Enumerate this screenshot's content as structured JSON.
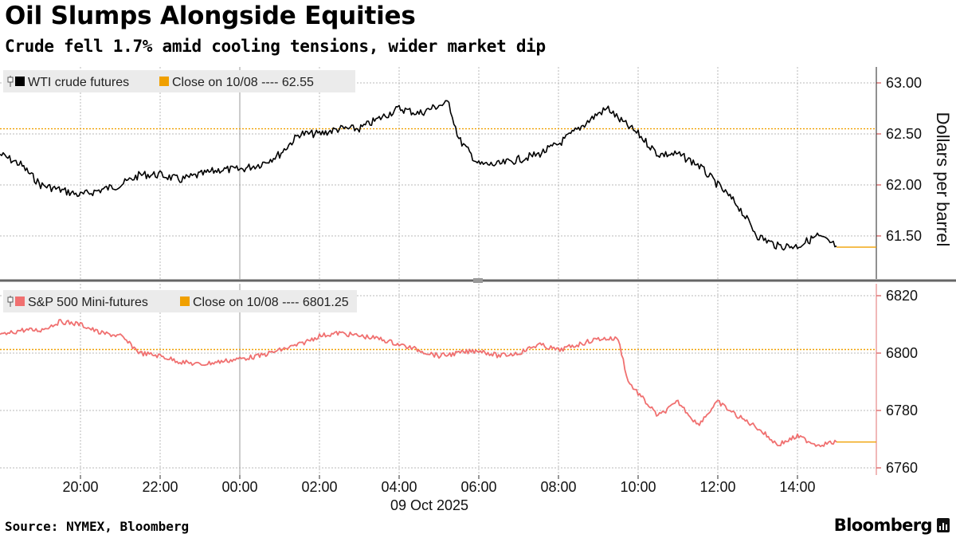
{
  "title": "Oil Slumps Alongside Equities",
  "subtitle": "Crude fell 1.7% amid cooling tensions, wider market dip",
  "source": "Source: NYMEX, Bloomberg",
  "brand": "Bloomberg",
  "x_axis": {
    "ticks": [
      "20:00",
      "22:00",
      "00:00",
      "02:00",
      "04:00",
      "06:00",
      "08:00",
      "10:00",
      "12:00",
      "14:00"
    ],
    "date_label": "09 Oct 2025"
  },
  "colors": {
    "wti": "#000000",
    "spx": "#f07070",
    "close": "#f0a000",
    "grid": "#b8b8b8"
  },
  "chart_data": [
    {
      "type": "line",
      "series": [
        {
          "name": "WTI crude futures",
          "x": [
            "18:00",
            "18:30",
            "19:00",
            "19:30",
            "20:00",
            "20:30",
            "21:00",
            "21:30",
            "22:00",
            "22:30",
            "23:00",
            "23:30",
            "00:00",
            "00:30",
            "01:00",
            "01:30",
            "02:00",
            "02:30",
            "03:00",
            "03:30",
            "04:00",
            "04:30",
            "05:00",
            "05:15",
            "05:30",
            "06:00",
            "06:30",
            "07:00",
            "07:30",
            "08:00",
            "08:30",
            "09:00",
            "09:15",
            "09:30",
            "10:00",
            "10:30",
            "11:00",
            "11:30",
            "12:00",
            "12:30",
            "13:00",
            "13:30",
            "14:00",
            "14:30",
            "14:50"
          ],
          "values": [
            62.3,
            62.2,
            62.0,
            61.95,
            61.9,
            61.95,
            62.0,
            62.1,
            62.1,
            62.05,
            62.1,
            62.15,
            62.15,
            62.2,
            62.3,
            62.5,
            62.5,
            62.55,
            62.55,
            62.65,
            62.75,
            62.7,
            62.78,
            62.8,
            62.45,
            62.2,
            62.2,
            62.25,
            62.3,
            62.4,
            62.55,
            62.7,
            62.75,
            62.65,
            62.5,
            62.3,
            62.3,
            62.2,
            62.0,
            61.8,
            61.5,
            61.4,
            61.4,
            61.5,
            61.4
          ]
        }
      ],
      "reference_line": {
        "label": "Close on 10/08 ---- 62.55",
        "value": 62.55
      },
      "last_value": 61.39,
      "ylabel": "Dollars per barrel",
      "yticks": [
        "63.00",
        "62.50",
        "62.00",
        "61.50"
      ],
      "ylim": [
        61.2,
        63.1
      ],
      "grid": true,
      "legend_position": "top-left"
    },
    {
      "type": "line",
      "series": [
        {
          "name": "S&P 500 Mini-futures",
          "x": [
            "18:00",
            "18:30",
            "19:00",
            "19:30",
            "20:00",
            "20:30",
            "21:00",
            "21:30",
            "22:00",
            "22:30",
            "23:00",
            "23:30",
            "00:00",
            "00:30",
            "01:00",
            "01:30",
            "02:00",
            "02:30",
            "03:00",
            "03:30",
            "04:00",
            "04:30",
            "05:00",
            "05:30",
            "06:00",
            "06:30",
            "07:00",
            "07:30",
            "08:00",
            "08:30",
            "09:00",
            "09:30",
            "09:45",
            "10:00",
            "10:30",
            "11:00",
            "11:30",
            "12:00",
            "12:30",
            "13:00",
            "13:30",
            "14:00",
            "14:30",
            "14:50"
          ],
          "values": [
            6806,
            6808,
            6808,
            6811,
            6810,
            6807,
            6806,
            6800,
            6799,
            6797,
            6796,
            6797,
            6798,
            6799,
            6801,
            6803,
            6806,
            6807,
            6806,
            6805,
            6803,
            6801,
            6799,
            6800,
            6801,
            6799,
            6800,
            6803,
            6801,
            6803,
            6805,
            6805,
            6790,
            6786,
            6778,
            6783,
            6775,
            6783,
            6778,
            6774,
            6768,
            6771,
            6768,
            6769
          ]
        }
      ],
      "reference_line": {
        "label": "Close on 10/08 ---- 6801.25",
        "value": 6801.25
      },
      "last_value": 6769,
      "yticks": [
        "6820",
        "6800",
        "6780",
        "6760"
      ],
      "ylim": [
        6758,
        6822
      ],
      "grid": true,
      "legend_position": "top-left"
    }
  ]
}
